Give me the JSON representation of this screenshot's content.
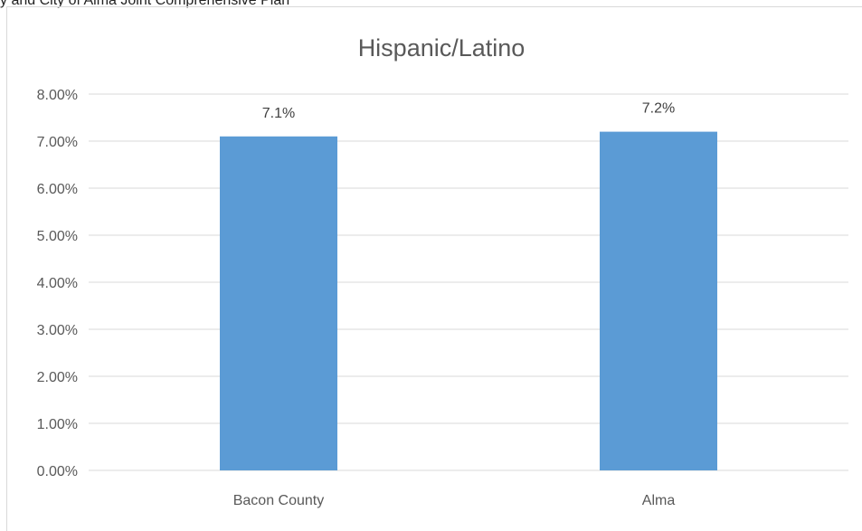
{
  "document": {
    "header_text": "y and City of Alma Joint Comprehensive Plan"
  },
  "chart_data": {
    "type": "bar",
    "title": "Hispanic/Latino",
    "categories": [
      "Bacon County",
      "Alma"
    ],
    "values": [
      0.071,
      0.072
    ],
    "data_labels": [
      "7.1%",
      "7.2%"
    ],
    "y_ticks": [
      0,
      0.01,
      0.02,
      0.03,
      0.04,
      0.05,
      0.06,
      0.07,
      0.08
    ],
    "y_tick_labels": [
      "0.00%",
      "1.00%",
      "2.00%",
      "3.00%",
      "4.00%",
      "5.00%",
      "6.00%",
      "7.00%",
      "8.00%"
    ],
    "ylim": [
      0,
      0.08
    ],
    "xlabel": "",
    "ylabel": "",
    "grid": true,
    "legend": "none",
    "colors": {
      "bar": "#5b9bd5",
      "grid": "#d9d9d9",
      "text": "#595959"
    }
  }
}
